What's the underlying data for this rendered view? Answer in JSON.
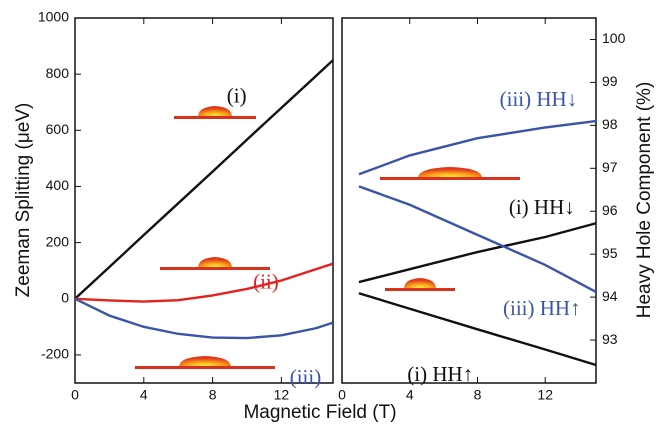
{
  "chart_data": [
    {
      "type": "line",
      "xlabel": "Magnetic Field (T)",
      "ylabel": "Zeeman Splitting (μeV)",
      "x": [
        0,
        2,
        4,
        6,
        8,
        10,
        12,
        14,
        15
      ],
      "xlim": [
        0,
        15
      ],
      "xticks": [
        0,
        4,
        8,
        12
      ],
      "ylim": [
        -300,
        1000
      ],
      "yticks": [
        -200,
        0,
        200,
        400,
        600,
        800,
        1000
      ],
      "series": [
        {
          "name": "(i)",
          "color": "#111111",
          "values": [
            0,
            113,
            227,
            340,
            453,
            567,
            680,
            793,
            850
          ]
        },
        {
          "name": "(ii)",
          "color": "#e3221d",
          "values": [
            0,
            -6,
            -10,
            -5,
            12,
            35,
            65,
            105,
            125
          ]
        },
        {
          "name": "(iii)",
          "color": "#3a55a8",
          "values": [
            0,
            -60,
            -100,
            -125,
            -138,
            -140,
            -130,
            -105,
            -85
          ]
        }
      ]
    },
    {
      "type": "line",
      "y2label": "Heavy Hole Component (%)",
      "x": [
        1,
        4,
        8,
        12,
        15
      ],
      "xlim": [
        0,
        15
      ],
      "xticks": [
        0,
        4,
        8,
        12
      ],
      "y2lim": [
        92,
        100.5
      ],
      "y2ticks": [
        93,
        94,
        95,
        96,
        97,
        98,
        99,
        100
      ],
      "series": [
        {
          "name": "(iii) HH↓",
          "color": "#3a55a8",
          "axis": "y2",
          "values": [
            96.86,
            97.3,
            97.7,
            97.95,
            98.1
          ]
        },
        {
          "name": "(i) HH↓",
          "color": "#111111",
          "axis": "y2",
          "values": [
            94.35,
            94.65,
            95.05,
            95.4,
            95.72
          ]
        },
        {
          "name": "(iii) HH↑",
          "color": "#3a55a8",
          "axis": "y2",
          "values": [
            96.58,
            96.15,
            95.45,
            94.75,
            94.12
          ]
        },
        {
          "name": "(i) HH↑",
          "color": "#111111",
          "axis": "y2",
          "values": [
            94.09,
            93.73,
            93.25,
            92.78,
            92.42
          ]
        }
      ]
    }
  ]
}
